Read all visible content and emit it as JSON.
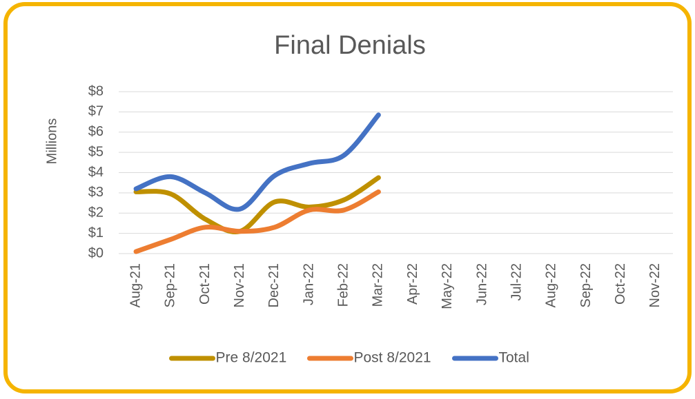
{
  "chart_data": {
    "type": "line",
    "title": "Final Denials",
    "y_label": "Millions",
    "categories": [
      "Aug-21",
      "Sep-21",
      "Oct-21",
      "Nov-21",
      "Dec-21",
      "Jan-22",
      "Feb-22",
      "Mar-22",
      "Apr-22",
      "May-22",
      "Jun-22",
      "Jul-22",
      "Aug-22",
      "Sep-22",
      "Oct-22",
      "Nov-22"
    ],
    "series": [
      {
        "name": "Pre 8/2021",
        "color": "#bf9000",
        "values": [
          3.05,
          2.95,
          1.7,
          1.1,
          2.55,
          2.3,
          2.65,
          3.75,
          null,
          null,
          null,
          null,
          null,
          null,
          null,
          null
        ]
      },
      {
        "name": "Post 8/2021",
        "color": "#ed7d31",
        "values": [
          0.1,
          0.7,
          1.3,
          1.1,
          1.3,
          2.15,
          2.15,
          3.05,
          null,
          null,
          null,
          null,
          null,
          null,
          null,
          null
        ]
      },
      {
        "name": "Total",
        "color": "#4472c4",
        "values": [
          3.2,
          3.8,
          3.0,
          2.2,
          3.85,
          4.45,
          4.85,
          6.85,
          null,
          null,
          null,
          null,
          null,
          null,
          null,
          null
        ]
      }
    ],
    "ylim": [
      0,
      8
    ],
    "yticks": [
      {
        "value": 0,
        "label": "$0"
      },
      {
        "value": 1,
        "label": "$1"
      },
      {
        "value": 2,
        "label": "$2"
      },
      {
        "value": 3,
        "label": "$3"
      },
      {
        "value": 4,
        "label": "$4"
      },
      {
        "value": 5,
        "label": "$5"
      },
      {
        "value": 6,
        "label": "$6"
      },
      {
        "value": 7,
        "label": "$7"
      },
      {
        "value": 8,
        "label": "$8"
      }
    ],
    "grid": true,
    "smooth": true,
    "legend": "bottom"
  }
}
